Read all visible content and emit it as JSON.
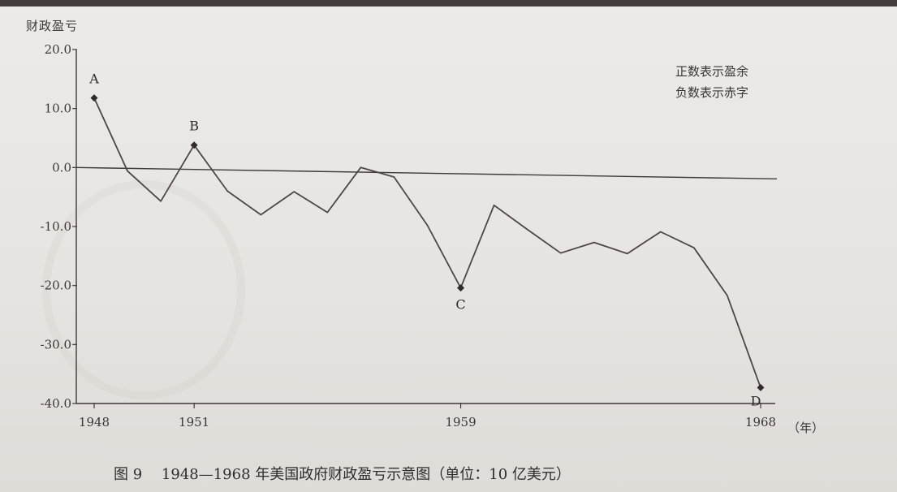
{
  "header": {
    "y_title": "财政盈亏",
    "note_lines": [
      "正数表示盈余",
      "负数表示赤字"
    ],
    "x_unit": "（年）",
    "caption_prefix": "图 9",
    "caption_text": "1948—1968 年美国政府财政盈亏示意图（单位：10 亿美元）"
  },
  "chart_data": {
    "type": "line",
    "title": "1948—1968 年美国政府财政盈亏示意图（单位：10 亿美元）",
    "xlabel": "（年）",
    "ylabel": "财政盈亏",
    "xlim": [
      1948,
      1968
    ],
    "ylim": [
      -40,
      20
    ],
    "x_ticks": [
      1948,
      1951,
      1959,
      1968
    ],
    "y_ticks": [
      20,
      10,
      0,
      -10,
      -20,
      -30,
      -40
    ],
    "y_tick_labels": [
      "20.0",
      "10.0",
      "0.0",
      "-10.0",
      "-20.0",
      "-30.0",
      "-40.0"
    ],
    "grid": false,
    "series": [
      {
        "points": [
          {
            "x": 1948,
            "y": 11.8
          },
          {
            "x": 1949,
            "y": -0.6
          },
          {
            "x": 1950,
            "y": -5.7
          },
          {
            "x": 1951,
            "y": 3.8
          },
          {
            "x": 1952,
            "y": -4.0
          },
          {
            "x": 1953,
            "y": -8.0
          },
          {
            "x": 1954,
            "y": -4.1
          },
          {
            "x": 1955,
            "y": -7.6
          },
          {
            "x": 1956,
            "y": 0.0
          },
          {
            "x": 1957,
            "y": -1.6
          },
          {
            "x": 1958,
            "y": -9.8
          },
          {
            "x": 1959,
            "y": -20.4
          },
          {
            "x": 1960,
            "y": -6.4
          },
          {
            "x": 1961,
            "y": -10.5
          },
          {
            "x": 1962,
            "y": -14.5
          },
          {
            "x": 1963,
            "y": -12.7
          },
          {
            "x": 1964,
            "y": -14.6
          },
          {
            "x": 1965,
            "y": -10.9
          },
          {
            "x": 1966,
            "y": -13.6
          },
          {
            "x": 1967,
            "y": -21.7
          },
          {
            "x": 1968,
            "y": -37.3
          }
        ]
      }
    ],
    "annotations": [
      {
        "label": "A",
        "x": 1948,
        "y": 11.8
      },
      {
        "label": "B",
        "x": 1951,
        "y": 3.8
      },
      {
        "label": "C",
        "x": 1959,
        "y": -20.4
      },
      {
        "label": "D",
        "x": 1968,
        "y": -37.3
      }
    ]
  }
}
